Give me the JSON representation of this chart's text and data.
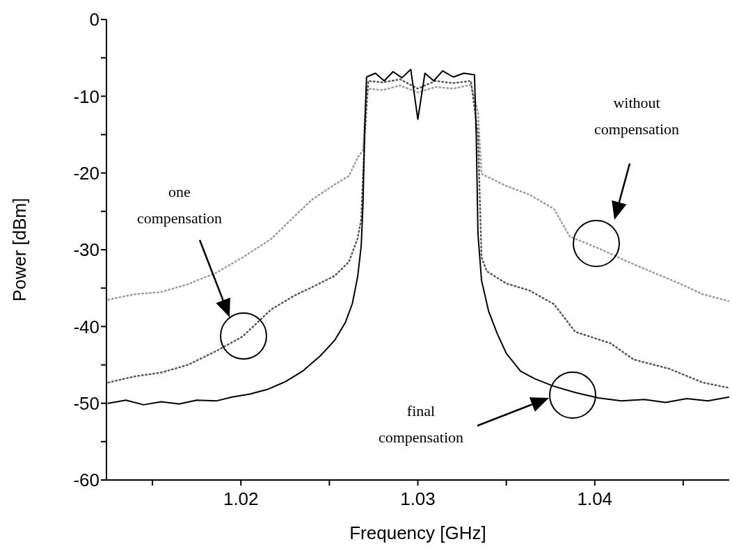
{
  "chart_data": {
    "type": "line",
    "xlabel": "Frequency [GHz]",
    "ylabel": "Power [dBm]",
    "xlim": [
      1.0124,
      1.0476
    ],
    "xticks": [
      {
        "value": 1.015,
        "label": null
      },
      1.02,
      {
        "value": 1.025,
        "label": null
      },
      1.03,
      {
        "value": 1.035,
        "label": null
      },
      1.04,
      {
        "value": 1.045,
        "label": null
      }
    ],
    "ylim": [
      -60,
      0
    ],
    "yticks": [
      -60,
      {
        "value": -55,
        "label": null
      },
      -50,
      {
        "value": -45,
        "label": null
      },
      -40,
      {
        "value": -35,
        "label": null
      },
      -30,
      {
        "value": -25,
        "label": null
      },
      -20,
      {
        "value": -15,
        "label": null
      },
      -10,
      {
        "value": -5,
        "label": null
      },
      0
    ],
    "marker": "none",
    "series": [
      {
        "color": "#9a9a9a",
        "line_style": "dotted",
        "x": [
          1.0125,
          1.014,
          1.0155,
          1.017,
          1.0186,
          1.0201,
          1.0217,
          1.024,
          1.0253,
          1.0261,
          1.0266,
          1.0269,
          1.0271,
          1.028,
          1.029,
          1.03,
          1.031,
          1.032,
          1.033,
          1.0334,
          1.0336,
          1.035,
          1.0363,
          1.0377,
          1.0386,
          1.0402,
          1.0422,
          1.0448,
          1.0461,
          1.0476
        ],
        "values": [
          -36.5,
          -35.8,
          -35.5,
          -34.5,
          -33,
          -31,
          -28.6,
          -23.5,
          -21.5,
          -20.4,
          -18,
          -17,
          -9,
          -9.2,
          -8.6,
          -9.5,
          -8.8,
          -9,
          -8.5,
          -12,
          -20.1,
          -21.7,
          -22.8,
          -24.7,
          -28.3,
          -29.8,
          -31.9,
          -34.4,
          -35.8,
          -36.7
        ]
      },
      {
        "color": "#555555",
        "line_style": "dotted",
        "x": [
          1.0125,
          1.014,
          1.0155,
          1.017,
          1.0186,
          1.0201,
          1.0217,
          1.023,
          1.024,
          1.0253,
          1.0261,
          1.0266,
          1.0268,
          1.027,
          1.0272,
          1.028,
          1.029,
          1.03,
          1.031,
          1.032,
          1.033,
          1.0334,
          1.0336,
          1.0339,
          1.035,
          1.0363,
          1.0377,
          1.0389,
          1.0409,
          1.0422,
          1.0442,
          1.0461,
          1.0476
        ],
        "values": [
          -47.3,
          -46.5,
          -46,
          -45,
          -43.2,
          -41.3,
          -37.8,
          -36,
          -34.9,
          -33.4,
          -31.6,
          -28.5,
          -26,
          -15,
          -8,
          -8.2,
          -7.8,
          -9,
          -8,
          -8.3,
          -8,
          -15,
          -31,
          -32.8,
          -34.4,
          -35.3,
          -37.1,
          -40.7,
          -42.2,
          -44.3,
          -45.5,
          -47.3,
          -48
        ]
      },
      {
        "color": "#000000",
        "line_style": "solid",
        "x": [
          1.0125,
          1.0135,
          1.0145,
          1.0155,
          1.0165,
          1.0175,
          1.0186,
          1.0195,
          1.0205,
          1.0215,
          1.0225,
          1.0235,
          1.0245,
          1.0253,
          1.0259,
          1.0263,
          1.0266,
          1.0268,
          1.0269,
          1.027,
          1.0271,
          1.0276,
          1.0281,
          1.0286,
          1.0291,
          1.0296,
          1.03,
          1.0304,
          1.0309,
          1.0314,
          1.032,
          1.0326,
          1.0332,
          1.0333,
          1.0334,
          1.0336,
          1.034,
          1.0345,
          1.035,
          1.0358,
          1.0366,
          1.0377,
          1.0389,
          1.0402,
          1.0415,
          1.0428,
          1.044,
          1.0452,
          1.0464,
          1.0476
        ],
        "values": [
          -50,
          -49.6,
          -50.2,
          -49.8,
          -50.1,
          -49.6,
          -49.7,
          -49.2,
          -48.8,
          -48.2,
          -47.2,
          -45.8,
          -43.8,
          -41.8,
          -39.5,
          -37,
          -33.5,
          -29.5,
          -24,
          -14,
          -7.5,
          -7,
          -8,
          -6.8,
          -7.6,
          -6.5,
          -13,
          -7,
          -8,
          -6.7,
          -7.5,
          -7,
          -7.2,
          -15,
          -28,
          -34,
          -38,
          -41,
          -43.5,
          -45.8,
          -46.8,
          -47.8,
          -48.6,
          -49.3,
          -49.7,
          -49.5,
          -49.9,
          -49.4,
          -49.7,
          -49.2
        ]
      }
    ],
    "annotations": [
      "without compensation",
      "one compensation",
      "final compensation"
    ]
  }
}
